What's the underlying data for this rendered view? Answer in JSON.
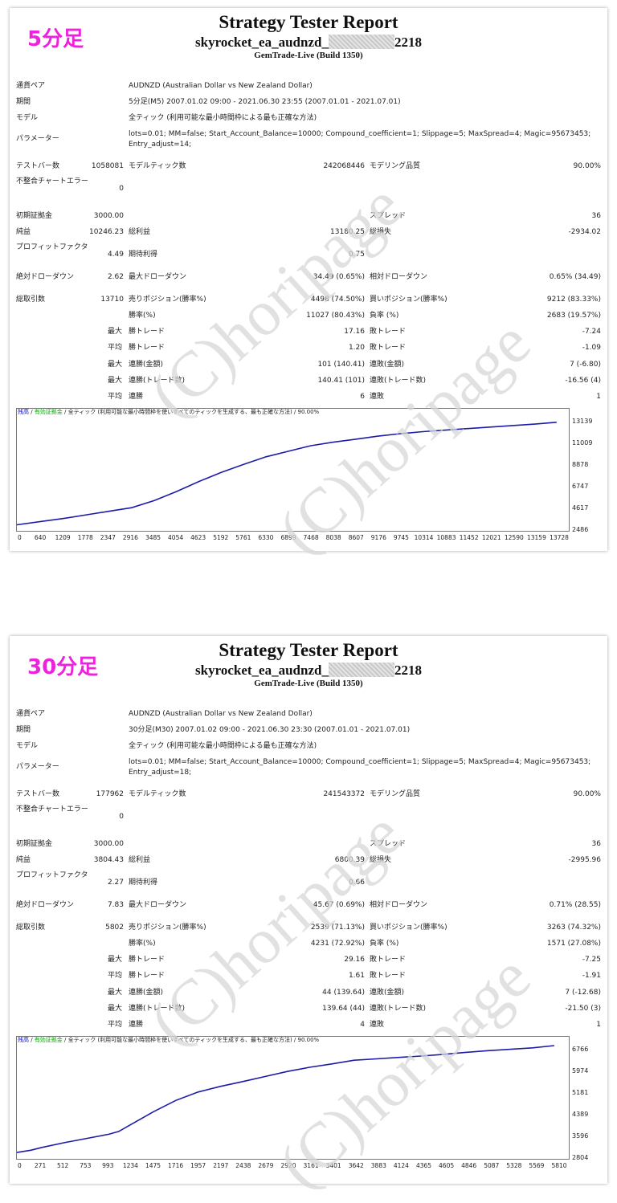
{
  "reports": [
    {
      "timeframe_label": "5分足",
      "title": "Strategy Tester Report",
      "ea_prefix": "skyrocket_ea_audnzd_",
      "ea_suffix": "2218",
      "server": "GemTrade-Live (Build 1350)",
      "labels": {
        "symbol": "通貨ペア",
        "period": "期間",
        "model": "モデル",
        "params": "パラメーター",
        "bars": "テストバー数",
        "ticks": "モデルティック数",
        "quality": "モデリング品質",
        "errors": "不整合チャートエラー",
        "deposit": "初期証拠金",
        "spread": "スプレッド",
        "net": "純益",
        "gross_profit": "総利益",
        "gross_loss": "総損失",
        "pf": "プロフィットファクタ",
        "expected": "期待利得",
        "abs_dd": "絶対ドローダウン",
        "max_dd": "最大ドローダウン",
        "rel_dd": "相対ドローダウン",
        "total": "総取引数",
        "short": "売りポジション(勝率%)",
        "long": "買いポジション(勝率%)",
        "win_rate": "勝率(%)",
        "loss_rate": "負率 (%)",
        "max": "最大",
        "avg": "平均",
        "win_trade": "勝トレード",
        "loss_trade": "敗トレード",
        "cons_win_money": "連勝(金額)",
        "cons_loss_money": "連敗(金額)",
        "cons_win_count": "連勝(トレード数)",
        "cons_loss_count": "連敗(トレード数)",
        "win_streak": "連勝",
        "loss_streak": "連敗"
      },
      "values": {
        "symbol": "AUDNZD (Australian Dollar vs New Zealand Dollar)",
        "period": "5分足(M5) 2007.01.02 09:00 - 2021.06.30 23:55 (2007.01.01 - 2021.07.01)",
        "model": "全ティック (利用可能な最小時間枠による最も正確な方法)",
        "params_line1": "lots=0.01; MM=false; Start_Account_Balance=10000; Compound_coefficient=1; Slippage=5; MaxSpread=4; Magic=95673453;",
        "params_line2": "Entry_adjust=14;",
        "bars": "1058081",
        "ticks": "242068446",
        "quality": "90.00%",
        "errors": "0",
        "deposit": "3000.00",
        "spread": "36",
        "net": "10246.23",
        "gross_profit": "13180.25",
        "gross_loss": "-2934.02",
        "pf": "4.49",
        "expected": "0.75",
        "abs_dd": "2.62",
        "max_dd": "34.49 (0.65%)",
        "rel_dd": "0.65% (34.49)",
        "total": "13710",
        "short": "4498 (74.50%)",
        "long": "9212 (83.33%)",
        "win_rate": "11027 (80.43%)",
        "loss_rate": "2683 (19.57%)",
        "max_win": "17.16",
        "max_loss": "-7.24",
        "avg_win": "1.20",
        "avg_loss": "-1.09",
        "cons_win_money": "101 (140.41)",
        "cons_loss_money": "7 (-6.80)",
        "cons_win_count": "140.41 (101)",
        "cons_loss_count": "-16.56 (4)",
        "avg_win_streak": "6",
        "avg_loss_streak": "1"
      },
      "chart_data": {
        "type": "line",
        "legend": [
          "残高",
          "有効証拠金",
          "全ティック (利用可能な最小時間枠を使いすべてのティックを生成する、最も正確な方法)",
          "90.00%"
        ],
        "legend_colors": [
          "#0000cc",
          "#00aa00",
          "#000000",
          "#000000"
        ],
        "x_ticks": [
          "0",
          "640",
          "1209",
          "1778",
          "2347",
          "2916",
          "3485",
          "4054",
          "4623",
          "5192",
          "5761",
          "6330",
          "6899",
          "7468",
          "8038",
          "8607",
          "9176",
          "9745",
          "10314",
          "10883",
          "11452",
          "12021",
          "12590",
          "13159",
          "13728"
        ],
        "y_ticks": [
          "13139",
          "11009",
          "8878",
          "6747",
          "4617",
          "2486"
        ],
        "xlim": [
          0,
          14000
        ],
        "ylim": [
          2486,
          14200
        ],
        "x": [
          0,
          640,
          1209,
          1778,
          2347,
          2916,
          3485,
          4054,
          4623,
          5192,
          5761,
          6330,
          6899,
          7468,
          8038,
          8607,
          9176,
          9745,
          10314,
          10883,
          11452,
          12021,
          12590,
          13159,
          13710
        ],
        "y": [
          3000,
          3350,
          3650,
          4000,
          4350,
          4700,
          5400,
          6300,
          7300,
          8200,
          9000,
          9750,
          10300,
          10850,
          11200,
          11500,
          11800,
          12050,
          12250,
          12400,
          12550,
          12700,
          12850,
          13000,
          13180
        ],
        "line_color": "#1c1ca8"
      }
    },
    {
      "timeframe_label": "30分足",
      "title": "Strategy Tester Report",
      "ea_prefix": "skyrocket_ea_audnzd_",
      "ea_suffix": "2218",
      "server": "GemTrade-Live (Build 1350)",
      "labels": {
        "symbol": "通貨ペア",
        "period": "期間",
        "model": "モデル",
        "params": "パラメーター",
        "bars": "テストバー数",
        "ticks": "モデルティック数",
        "quality": "モデリング品質",
        "errors": "不整合チャートエラー",
        "deposit": "初期証拠金",
        "spread": "スプレッド",
        "net": "純益",
        "gross_profit": "総利益",
        "gross_loss": "総損失",
        "pf": "プロフィットファクタ",
        "expected": "期待利得",
        "abs_dd": "絶対ドローダウン",
        "max_dd": "最大ドローダウン",
        "rel_dd": "相対ドローダウン",
        "total": "総取引数",
        "short": "売りポジション(勝率%)",
        "long": "買いポジション(勝率%)",
        "win_rate": "勝率(%)",
        "loss_rate": "負率 (%)",
        "max": "最大",
        "avg": "平均",
        "win_trade": "勝トレード",
        "loss_trade": "敗トレード",
        "cons_win_money": "連勝(金額)",
        "cons_loss_money": "連敗(金額)",
        "cons_win_count": "連勝(トレード数)",
        "cons_loss_count": "連敗(トレード数)",
        "win_streak": "連勝",
        "loss_streak": "連敗"
      },
      "values": {
        "symbol": "AUDNZD (Australian Dollar vs New Zealand Dollar)",
        "period": "30分足(M30) 2007.01.02 09:00 - 2021.06.30 23:30 (2007.01.01 - 2021.07.01)",
        "model": "全ティック (利用可能な最小時間枠による最も正確な方法)",
        "params_line1": "lots=0.01; MM=false; Start_Account_Balance=10000; Compound_coefficient=1; Slippage=5; MaxSpread=4; Magic=95673453;",
        "params_line2": "Entry_adjust=18;",
        "bars": "177962",
        "ticks": "241543372",
        "quality": "90.00%",
        "errors": "0",
        "deposit": "3000.00",
        "spread": "36",
        "net": "3804.43",
        "gross_profit": "6800.39",
        "gross_loss": "-2995.96",
        "pf": "2.27",
        "expected": "0.66",
        "abs_dd": "7.83",
        "max_dd": "45.67 (0.69%)",
        "rel_dd": "0.71% (28.55)",
        "total": "5802",
        "short": "2539 (71.13%)",
        "long": "3263 (74.32%)",
        "win_rate": "4231 (72.92%)",
        "loss_rate": "1571 (27.08%)",
        "max_win": "29.16",
        "max_loss": "-7.25",
        "avg_win": "1.61",
        "avg_loss": "-1.91",
        "cons_win_money": "44 (139.64)",
        "cons_loss_money": "7 (-12.68)",
        "cons_win_count": "139.64 (44)",
        "cons_loss_count": "-21.50 (3)",
        "avg_win_streak": "4",
        "avg_loss_streak": "1"
      },
      "chart_data": {
        "type": "line",
        "legend": [
          "残高",
          "有効証拠金",
          "全ティック (利用可能な最小時間枠を使いすべてのティックを生成する、最も正確な方法)",
          "90.00%"
        ],
        "legend_colors": [
          "#0000cc",
          "#00aa00",
          "#000000",
          "#000000"
        ],
        "x_ticks": [
          "0",
          "271",
          "512",
          "753",
          "993",
          "1234",
          "1475",
          "1716",
          "1957",
          "2197",
          "2438",
          "2679",
          "2920",
          "3161",
          "3401",
          "3642",
          "3883",
          "4124",
          "4365",
          "4605",
          "4846",
          "5087",
          "5328",
          "5569",
          "5810"
        ],
        "y_ticks": [
          "6766",
          "5974",
          "5181",
          "4389",
          "3596",
          "2804"
        ],
        "xlim": [
          0,
          5950
        ],
        "ylim": [
          2804,
          7000
        ],
        "x": [
          0,
          150,
          271,
          512,
          753,
          993,
          1100,
          1234,
          1475,
          1716,
          1957,
          2197,
          2438,
          2679,
          2920,
          3161,
          3401,
          3642,
          3883,
          4124,
          4365,
          4605,
          4846,
          5087,
          5328,
          5569,
          5802
        ],
        "y": [
          3000,
          3080,
          3180,
          3350,
          3500,
          3650,
          3750,
          4000,
          4450,
          4850,
          5150,
          5350,
          5520,
          5700,
          5880,
          6030,
          6150,
          6280,
          6330,
          6380,
          6430,
          6490,
          6560,
          6620,
          6670,
          6720,
          6800
        ],
        "line_color": "#1c1ca8"
      }
    }
  ],
  "watermark": "(C)horipage"
}
